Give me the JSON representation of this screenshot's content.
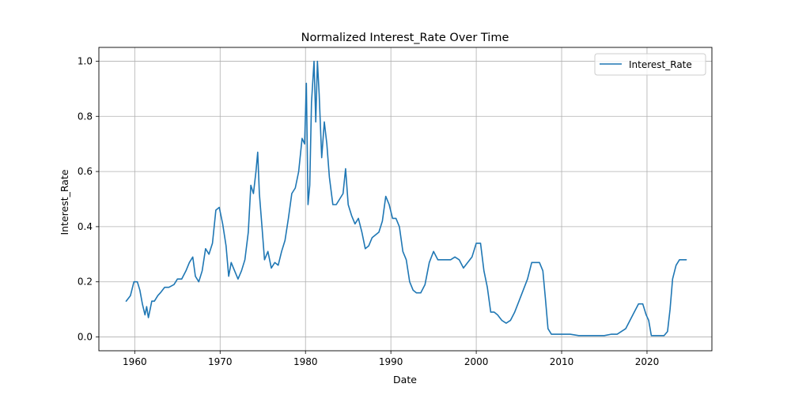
{
  "chart_data": {
    "type": "line",
    "title": "Normalized Interest_Rate Over Time",
    "xlabel": "Date",
    "ylabel": "Interest_Rate",
    "xlim": [
      1955.8,
      2027.6
    ],
    "ylim": [
      -0.05,
      1.05
    ],
    "x_ticks": [
      1960,
      1970,
      1980,
      1990,
      2000,
      2010,
      2020
    ],
    "y_ticks": [
      0.0,
      0.2,
      0.4,
      0.6,
      0.8,
      1.0
    ],
    "x_tick_labels": [
      "1960",
      "1970",
      "1980",
      "1990",
      "2000",
      "2010",
      "2020"
    ],
    "y_tick_labels": [
      "0.0",
      "0.2",
      "0.4",
      "0.6",
      "0.8",
      "1.0"
    ],
    "grid": true,
    "legend_position": "top-right",
    "series": [
      {
        "name": "Interest_Rate",
        "color": "#1f77b4",
        "x": [
          1959.0,
          1959.5,
          1959.9,
          1960.3,
          1960.6,
          1960.9,
          1961.2,
          1961.4,
          1961.6,
          1961.8,
          1962.0,
          1962.3,
          1962.7,
          1963.0,
          1963.5,
          1964.0,
          1964.6,
          1965.0,
          1965.5,
          1966.0,
          1966.4,
          1966.8,
          1967.1,
          1967.5,
          1967.9,
          1968.3,
          1968.7,
          1969.1,
          1969.5,
          1969.9,
          1970.3,
          1970.7,
          1971.0,
          1971.3,
          1971.7,
          1972.1,
          1972.5,
          1972.9,
          1973.3,
          1973.6,
          1973.9,
          1974.2,
          1974.4,
          1974.6,
          1974.9,
          1975.2,
          1975.6,
          1976.0,
          1976.4,
          1976.8,
          1977.2,
          1977.6,
          1978.0,
          1978.4,
          1978.8,
          1979.2,
          1979.6,
          1979.9,
          1980.1,
          1980.3,
          1980.5,
          1980.7,
          1981.0,
          1981.2,
          1981.4,
          1981.6,
          1981.9,
          1982.2,
          1982.5,
          1982.8,
          1983.2,
          1983.6,
          1984.0,
          1984.4,
          1984.7,
          1985.0,
          1985.4,
          1985.8,
          1986.2,
          1986.6,
          1987.0,
          1987.4,
          1987.8,
          1988.2,
          1988.6,
          1989.0,
          1989.4,
          1989.8,
          1990.2,
          1990.6,
          1991.0,
          1991.4,
          1991.8,
          1992.2,
          1992.6,
          1993.0,
          1993.5,
          1994.0,
          1994.5,
          1995.0,
          1995.5,
          1996.0,
          1996.5,
          1997.0,
          1997.5,
          1998.0,
          1998.5,
          1999.0,
          1999.5,
          2000.0,
          2000.5,
          2000.9,
          2001.3,
          2001.7,
          2002.1,
          2002.5,
          2003.0,
          2003.5,
          2004.0,
          2004.5,
          2005.0,
          2005.5,
          2006.0,
          2006.5,
          2007.0,
          2007.4,
          2007.8,
          2008.1,
          2008.4,
          2008.8,
          2009.2,
          2010.0,
          2011.0,
          2012.0,
          2013.0,
          2014.0,
          2015.0,
          2015.8,
          2016.5,
          2017.0,
          2017.5,
          2018.0,
          2018.5,
          2019.0,
          2019.5,
          2019.9,
          2020.2,
          2020.5,
          2021.0,
          2021.5,
          2022.0,
          2022.4,
          2022.7,
          2023.0,
          2023.4,
          2023.8,
          2024.2,
          2024.6
        ],
        "values": [
          0.13,
          0.15,
          0.2,
          0.2,
          0.17,
          0.12,
          0.08,
          0.11,
          0.07,
          0.1,
          0.13,
          0.13,
          0.15,
          0.16,
          0.18,
          0.18,
          0.19,
          0.21,
          0.21,
          0.24,
          0.27,
          0.29,
          0.22,
          0.2,
          0.24,
          0.32,
          0.3,
          0.34,
          0.46,
          0.47,
          0.41,
          0.33,
          0.22,
          0.27,
          0.24,
          0.21,
          0.24,
          0.28,
          0.38,
          0.55,
          0.52,
          0.6,
          0.67,
          0.52,
          0.4,
          0.28,
          0.31,
          0.25,
          0.27,
          0.26,
          0.31,
          0.35,
          0.43,
          0.52,
          0.54,
          0.6,
          0.72,
          0.7,
          0.92,
          0.48,
          0.55,
          0.85,
          1.0,
          0.78,
          1.0,
          0.88,
          0.65,
          0.78,
          0.7,
          0.58,
          0.48,
          0.48,
          0.5,
          0.52,
          0.61,
          0.48,
          0.44,
          0.41,
          0.43,
          0.38,
          0.32,
          0.33,
          0.36,
          0.37,
          0.38,
          0.42,
          0.51,
          0.48,
          0.43,
          0.43,
          0.4,
          0.31,
          0.28,
          0.2,
          0.17,
          0.16,
          0.16,
          0.19,
          0.27,
          0.31,
          0.28,
          0.28,
          0.28,
          0.28,
          0.29,
          0.28,
          0.25,
          0.27,
          0.29,
          0.34,
          0.34,
          0.24,
          0.18,
          0.09,
          0.09,
          0.08,
          0.06,
          0.05,
          0.06,
          0.09,
          0.13,
          0.17,
          0.21,
          0.27,
          0.27,
          0.27,
          0.24,
          0.14,
          0.03,
          0.01,
          0.01,
          0.01,
          0.01,
          0.005,
          0.005,
          0.005,
          0.005,
          0.01,
          0.01,
          0.02,
          0.03,
          0.06,
          0.09,
          0.12,
          0.12,
          0.08,
          0.06,
          0.005,
          0.005,
          0.005,
          0.005,
          0.02,
          0.1,
          0.21,
          0.26,
          0.28,
          0.28,
          0.28
        ]
      }
    ]
  }
}
